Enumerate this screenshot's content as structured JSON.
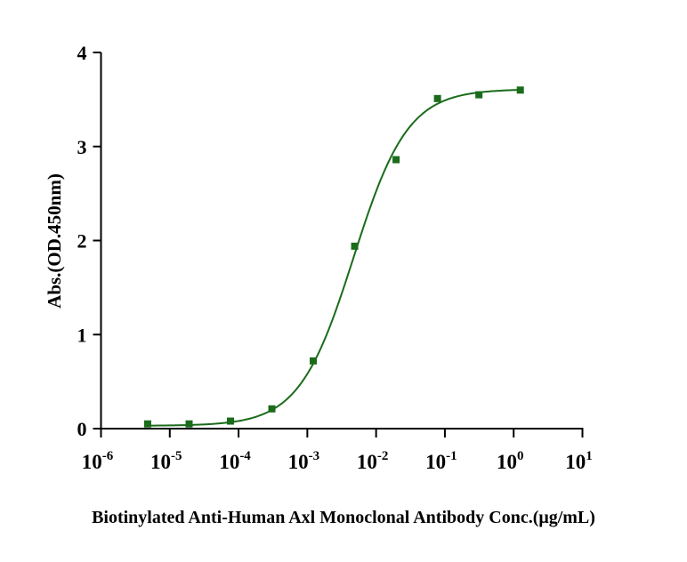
{
  "chart_data": {
    "type": "scatter",
    "title": "",
    "xlabel": "Biotinylated Anti-Human Axl Monoclonal Antibody Conc.(μg/mL)",
    "ylabel": "Abs.(OD.450nm)",
    "xscale": "log",
    "xlim": [
      1e-06,
      10
    ],
    "ylim": [
      0,
      4
    ],
    "x_ticks": [
      {
        "base": "10",
        "exp": "-6",
        "value": 1e-06
      },
      {
        "base": "10",
        "exp": "-5",
        "value": 1e-05
      },
      {
        "base": "10",
        "exp": "-4",
        "value": 0.0001
      },
      {
        "base": "10",
        "exp": "-3",
        "value": 0.001
      },
      {
        "base": "10",
        "exp": "-2",
        "value": 0.01
      },
      {
        "base": "10",
        "exp": "-1",
        "value": 0.1
      },
      {
        "base": "10",
        "exp": "0",
        "value": 1
      },
      {
        "base": "10",
        "exp": "1",
        "value": 10
      }
    ],
    "y_ticks": [
      "0",
      "1",
      "2",
      "3",
      "4"
    ],
    "grid": false,
    "color": "#1a6b1a",
    "series": [
      {
        "name": "Biotinylated Anti-Human Axl Monoclonal Antibody",
        "x": [
          4.77e-06,
          1.91e-05,
          7.63e-05,
          0.000305,
          0.00122,
          0.00488,
          0.0195,
          0.0781,
          0.3125,
          1.25
        ],
        "y": [
          0.05,
          0.05,
          0.08,
          0.21,
          0.72,
          1.94,
          2.86,
          3.51,
          3.55,
          3.6
        ]
      }
    ],
    "fit": {
      "model": "4PL",
      "bottom": 0.03,
      "top": 3.61,
      "ec50": 0.0047,
      "hill": 1.1
    }
  }
}
